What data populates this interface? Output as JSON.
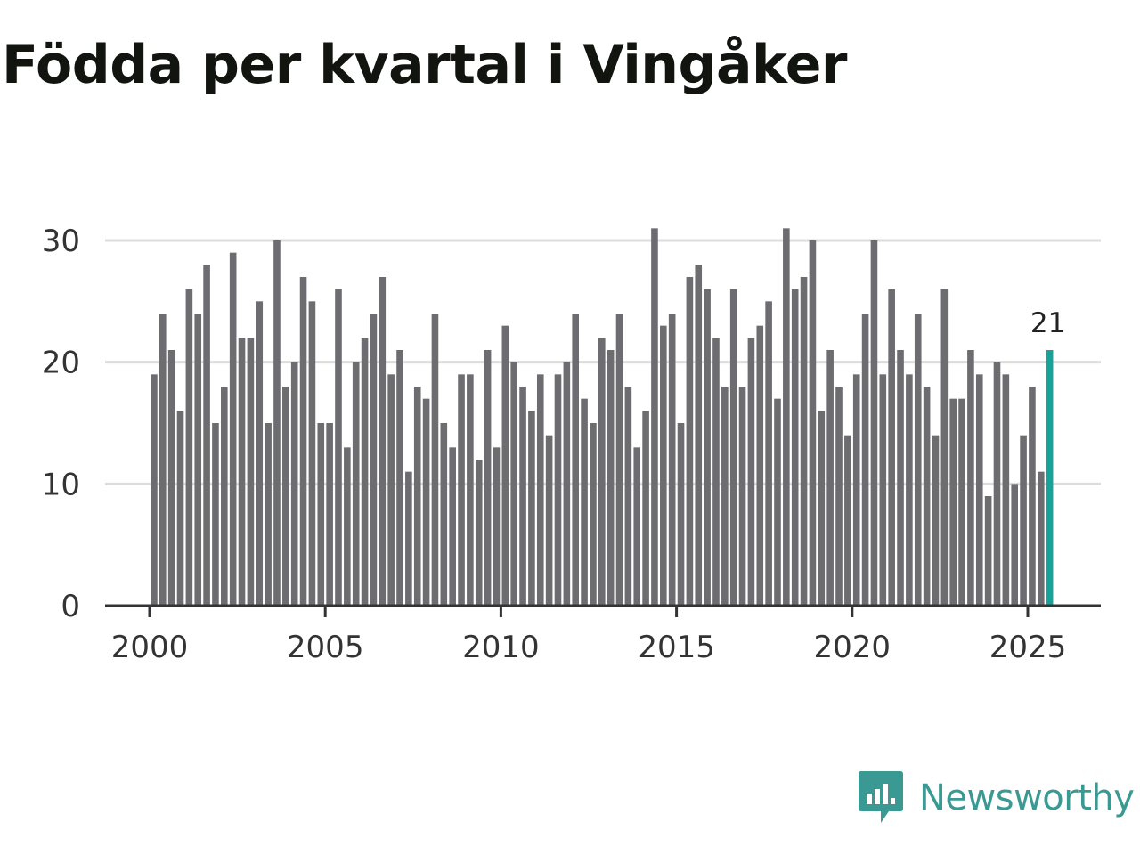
{
  "title": "Födda per kvartal i Vingåker",
  "brand": {
    "name": "Newsworthy",
    "icon": "newsworthy-logo-icon",
    "color": "#3a9a93"
  },
  "chart_data": {
    "type": "bar",
    "title": "Födda per kvartal i Vingåker",
    "xlabel": "",
    "ylabel": "",
    "ylim": [
      0,
      33
    ],
    "yticks": [
      0,
      10,
      20,
      30
    ],
    "xticks": [
      2000,
      2005,
      2010,
      2015,
      2020,
      2025
    ],
    "grid": true,
    "bar_color": "#6d6c71",
    "highlight_color": "#17a39a",
    "highlight_label": "21",
    "start_year": 2000,
    "start_quarter": 1,
    "values": [
      19,
      24,
      21,
      16,
      26,
      24,
      28,
      15,
      18,
      29,
      22,
      22,
      25,
      15,
      30,
      18,
      20,
      27,
      25,
      15,
      15,
      26,
      13,
      20,
      22,
      24,
      27,
      19,
      21,
      11,
      18,
      17,
      24,
      15,
      13,
      19,
      19,
      12,
      21,
      13,
      23,
      20,
      18,
      16,
      19,
      14,
      19,
      20,
      24,
      17,
      15,
      22,
      21,
      24,
      18,
      13,
      16,
      31,
      23,
      24,
      15,
      27,
      28,
      26,
      22,
      18,
      26,
      18,
      22,
      23,
      25,
      17,
      31,
      26,
      27,
      30,
      16,
      21,
      18,
      14,
      19,
      24,
      30,
      19,
      26,
      21,
      19,
      24,
      18,
      14,
      26,
      17,
      17,
      21,
      19,
      9,
      20,
      19,
      10,
      14,
      18,
      11,
      21
    ]
  }
}
